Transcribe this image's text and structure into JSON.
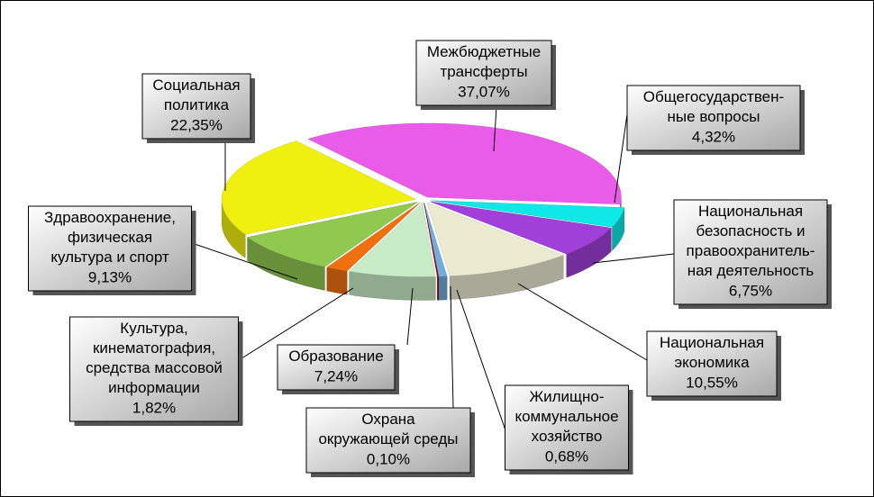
{
  "chart_data": {
    "type": "pie3d",
    "categories": [
      "Межбюджетные\nтрансферты",
      "Общегосударствен-\nные вопросы",
      "Национальная\nбезопасность и\nправоохранитель-\nная деятельность",
      "Национальная\nэкономика",
      "Жилищно-\nкоммунальное\nхозяйство",
      "Охрана\nокружающей среды",
      "Образование",
      "Культура,\nкинематография,\nсредства массовой\nинформации",
      "Здравоохранение,\nфизическая\nкультура и спорт",
      "Социальная\nполитика"
    ],
    "values": [
      37.07,
      4.32,
      6.75,
      10.55,
      0.68,
      0.1,
      7.24,
      1.82,
      9.13,
      22.35
    ],
    "value_labels": [
      "37,07%",
      "4,32%",
      "6,75%",
      "10,55%",
      "0,68%",
      "0,10%",
      "7,24%",
      "1,82%",
      "9,13%",
      "22,35%"
    ],
    "colors": [
      "#e85ce8",
      "#10e8e8",
      "#a040d8",
      "#ecead0",
      "#70aee0",
      "#b00000",
      "#c8ecc8",
      "#f07010",
      "#90c850",
      "#f0f010"
    ]
  }
}
